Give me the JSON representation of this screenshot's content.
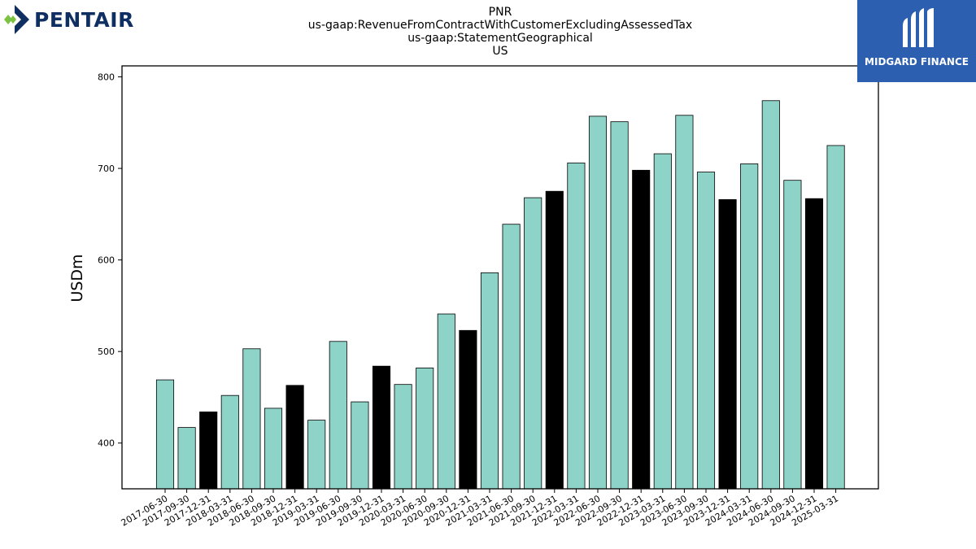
{
  "logos": {
    "left": {
      "name": "PENTAIR",
      "colors": {
        "text": "#0f2f63",
        "mark_green": "#7cc242",
        "mark_blue": "#0f2f63"
      }
    },
    "right": {
      "name": "MIDGARD FINANCE",
      "background": "#2c5fb0"
    }
  },
  "title_lines": [
    "PNR",
    "us-gaap:RevenueFromContractWithCustomerExcludingAssessedTax",
    "us-gaap:StatementGeographical",
    "US"
  ],
  "chart_data": {
    "type": "bar",
    "ylabel": "USDm",
    "xlabel": "",
    "ylim": [
      350,
      812
    ],
    "yticks": [
      400,
      500,
      600,
      700,
      800
    ],
    "grid": false,
    "colors": {
      "quarter": "#8dd3c7",
      "year_end": "#000000",
      "edge": "#000000"
    },
    "categories": [
      "2017-06-30",
      "2017-09-30",
      "2017-12-31",
      "2018-03-31",
      "2018-06-30",
      "2018-09-30",
      "2018-12-31",
      "2019-03-31",
      "2019-06-30",
      "2019-09-30",
      "2019-12-31",
      "2020-03-31",
      "2020-06-30",
      "2020-09-30",
      "2020-12-31",
      "2021-03-31",
      "2021-06-30",
      "2021-09-30",
      "2021-12-31",
      "2022-03-31",
      "2022-06-30",
      "2022-09-30",
      "2022-12-31",
      "2023-03-31",
      "2023-06-30",
      "2023-09-30",
      "2023-12-31",
      "2024-03-31",
      "2024-06-30",
      "2024-09-30",
      "2024-12-31",
      "2025-03-31"
    ],
    "values": [
      469,
      417,
      434,
      452,
      503,
      438,
      463,
      425,
      511,
      445,
      484,
      464,
      482,
      541,
      523,
      586,
      639,
      668,
      675,
      706,
      757,
      751,
      698,
      716,
      758,
      696,
      666,
      705,
      774,
      687,
      667,
      725
    ],
    "highlight": [
      false,
      false,
      true,
      false,
      false,
      false,
      true,
      false,
      false,
      false,
      true,
      false,
      false,
      false,
      true,
      false,
      false,
      false,
      true,
      false,
      false,
      false,
      true,
      false,
      false,
      false,
      true,
      false,
      false,
      false,
      true,
      false
    ]
  }
}
